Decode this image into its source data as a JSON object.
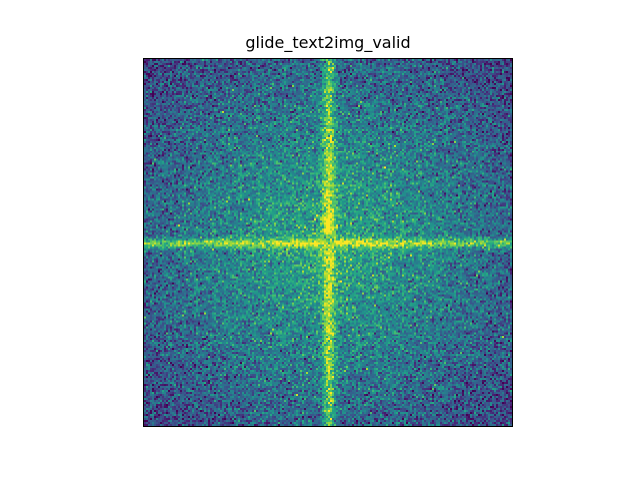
{
  "chart_data": {
    "type": "heatmap",
    "title": "glide_text2img_valid",
    "xlabel": "",
    "ylabel": "",
    "colormap": "viridis",
    "axis_ticks": "hidden",
    "description_of_pattern": "log-magnitude 2D frequency spectrum with bright horizontal and vertical cross through a dark center point, higher intensity near center and lower at corners",
    "colors": {
      "low": "#440154",
      "mid_low": "#31688e",
      "mid": "#21918c",
      "mid_high": "#5ec962",
      "high": "#fde725"
    }
  }
}
